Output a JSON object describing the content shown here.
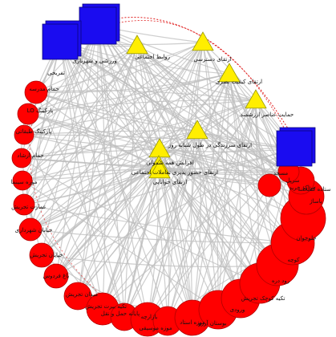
{
  "colors": {
    "edge": "#bdbdbd",
    "dotted_edge": "#e02020",
    "circle_fill": "#ff0000",
    "circle_stroke": "#b00000",
    "triangle_fill": "#ffee00",
    "triangle_stroke": "#999900",
    "square_fill": "#1a0cf0",
    "square_stroke": "#0a057a"
  },
  "node_types": {
    "circle": "circle",
    "triangle": "triangle",
    "square": "square"
  },
  "nodes": {
    "squares": [
      {
        "id": "sq1",
        "label": "ورزشی و شهربازی"
      },
      {
        "id": "sq2",
        "label": "تفریحی"
      },
      {
        "id": "sq3",
        "label": "مراکز خرید"
      }
    ],
    "triangles": [
      {
        "id": "t1",
        "label": "روابط اجتماعی"
      },
      {
        "id": "t2",
        "label": "ارتقای دسترسی"
      },
      {
        "id": "t3",
        "label": "ارتقای کیفیت بصری"
      },
      {
        "id": "t4",
        "label": "حمایت عناصر ارزشمند"
      },
      {
        "id": "t5",
        "label": "ارتقای سرزندگی در طول شبانه روز"
      },
      {
        "id": "t6",
        "label": "افزایش همه شمولی"
      },
      {
        "id": "t7",
        "label": "ارتقای حضور پذیری تعاملات اجتماعی"
      },
      {
        "id": "t8",
        "label": "ارتقای خوانایی"
      }
    ],
    "circles": [
      {
        "id": "c1",
        "label": "حمام مدرسه"
      },
      {
        "id": "c2",
        "label": "پارکینگ LO"
      },
      {
        "id": "c3",
        "label": "پارکینگ طبقاتی"
      },
      {
        "id": "c4",
        "label": "حمام ارشاد"
      },
      {
        "id": "c5",
        "label": "موزه سینما"
      },
      {
        "id": "c6",
        "label": "عمارت تجریش"
      },
      {
        "id": "c7",
        "label": "خیابان شهرداری"
      },
      {
        "id": "c8",
        "label": "خیابان تجریش"
      },
      {
        "id": "c9",
        "label": "باغ فردوس"
      },
      {
        "id": "c10",
        "label": "میدان تجریش"
      },
      {
        "id": "c11",
        "label": "تکیه بیرت تجریش"
      },
      {
        "id": "c12",
        "label": "پایانه حمل و نقل"
      },
      {
        "id": "c13",
        "label": "بازارچه"
      },
      {
        "id": "c14",
        "label": "موزه موسیقی"
      },
      {
        "id": "c15",
        "label": "موزه استاد"
      },
      {
        "id": "c16",
        "label": "بوستان آرزو"
      },
      {
        "id": "c17",
        "label": "ورودی"
      },
      {
        "id": "c18",
        "label": "تکیه کوچک تجریش"
      },
      {
        "id": "c19",
        "label": "رود دره"
      },
      {
        "id": "c20",
        "label": "کوچه"
      },
      {
        "id": "c21",
        "label": "جلوخوان"
      },
      {
        "id": "c22",
        "label": "پاساژ"
      },
      {
        "id": "c23",
        "label": "سرپل"
      },
      {
        "id": "c24",
        "label": "ستاده کتابخانه"
      },
      {
        "id": "c25",
        "label": "مسجد"
      }
    ]
  }
}
